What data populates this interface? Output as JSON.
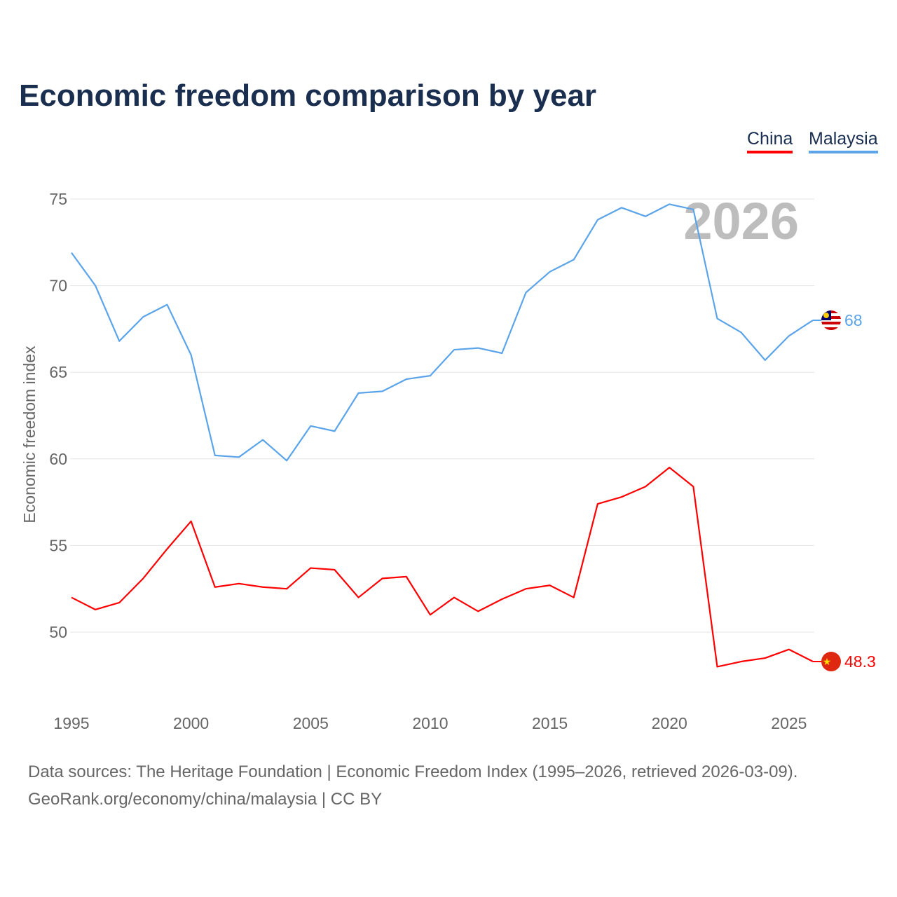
{
  "chart_data": {
    "type": "line",
    "title": "Economic freedom comparison by year",
    "xlabel": "",
    "ylabel": "Economic freedom index",
    "ylim": [
      46,
      77
    ],
    "xlim": [
      1995,
      2026
    ],
    "yticks": [
      50,
      55,
      60,
      65,
      70,
      75
    ],
    "xticks": [
      1995,
      2000,
      2005,
      2010,
      2015,
      2020,
      2025
    ],
    "grid": true,
    "legend_position": "top-right",
    "year_watermark": "2026",
    "x": [
      1995,
      1996,
      1997,
      1998,
      1999,
      2000,
      2001,
      2002,
      2003,
      2004,
      2005,
      2006,
      2007,
      2008,
      2009,
      2010,
      2011,
      2012,
      2013,
      2014,
      2015,
      2016,
      2017,
      2018,
      2019,
      2020,
      2021,
      2022,
      2023,
      2024,
      2025,
      2026
    ],
    "series": [
      {
        "name": "China",
        "color": "#ff0000",
        "end_label": "48.3",
        "flag": "china-flag",
        "values": [
          52.0,
          51.3,
          51.7,
          53.1,
          54.8,
          56.4,
          52.6,
          52.8,
          52.6,
          52.5,
          53.7,
          53.6,
          52.0,
          53.1,
          53.2,
          51.0,
          52.0,
          51.2,
          51.9,
          52.5,
          52.7,
          52.0,
          57.4,
          57.8,
          58.4,
          59.5,
          58.4,
          48.0,
          48.3,
          48.5,
          49.0,
          48.3
        ]
      },
      {
        "name": "Malaysia",
        "color": "#5ba4ea",
        "end_label": "68",
        "flag": "malaysia-flag",
        "values": [
          71.9,
          70.0,
          66.8,
          68.2,
          68.9,
          66.0,
          60.2,
          60.1,
          61.1,
          59.9,
          61.9,
          61.6,
          63.8,
          63.9,
          64.6,
          64.8,
          66.3,
          66.4,
          66.1,
          69.6,
          70.8,
          71.5,
          73.8,
          74.5,
          74.0,
          74.7,
          74.4,
          68.1,
          67.3,
          65.7,
          67.1,
          68.0
        ]
      }
    ]
  },
  "footer": {
    "line1": "Data sources: The Heritage Foundation | Economic Freedom Index (1995–2026, retrieved 2026-03-09).",
    "line2": "GeoRank.org/economy/china/malaysia | CC BY"
  }
}
